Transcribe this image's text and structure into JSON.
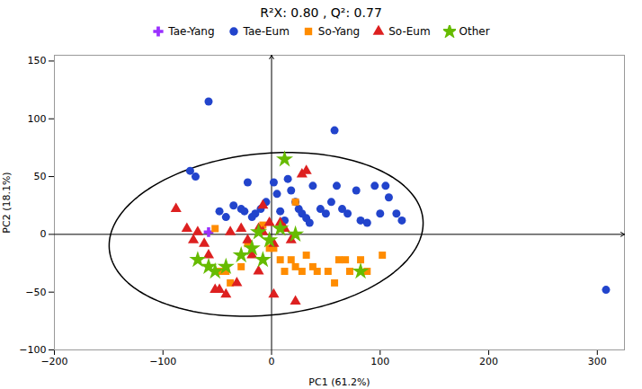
{
  "chart_data": {
    "type": "scatter",
    "title": "R²X: 0.80 , Q²: 0.77",
    "xlabel": "PC1 (61.2%)",
    "ylabel": "PC2 (18.1%)",
    "xlim": [
      -200,
      325
    ],
    "ylim": [
      -100,
      155
    ],
    "xticks": [
      -200,
      -100,
      0,
      100,
      200,
      300
    ],
    "yticks": [
      -100,
      -50,
      0,
      50,
      100,
      150
    ],
    "grid": false,
    "legend": "top",
    "ellipse": {
      "cx": -5,
      "cy": 0,
      "rx": 145,
      "ry": 70,
      "angle": 5
    },
    "series": [
      {
        "name": "Tae-Yang",
        "color": "#9B30FF",
        "marker": "plus",
        "values": [
          [
            -58,
            2
          ]
        ]
      },
      {
        "name": "Tae-Eum",
        "color": "#2244CC",
        "marker": "circle",
        "values": [
          [
            -75,
            55
          ],
          [
            -70,
            50
          ],
          [
            -48,
            20
          ],
          [
            -42,
            15
          ],
          [
            -35,
            25
          ],
          [
            -28,
            22
          ],
          [
            -25,
            20
          ],
          [
            -22,
            45
          ],
          [
            -18,
            15
          ],
          [
            -15,
            18
          ],
          [
            -10,
            22
          ],
          [
            -5,
            28
          ],
          [
            2,
            45
          ],
          [
            5,
            35
          ],
          [
            8,
            20
          ],
          [
            12,
            12
          ],
          [
            15,
            48
          ],
          [
            18,
            38
          ],
          [
            22,
            28
          ],
          [
            25,
            22
          ],
          [
            28,
            18
          ],
          [
            32,
            14
          ],
          [
            35,
            10
          ],
          [
            38,
            42
          ],
          [
            45,
            22
          ],
          [
            50,
            18
          ],
          [
            55,
            28
          ],
          [
            60,
            42
          ],
          [
            65,
            22
          ],
          [
            70,
            18
          ],
          [
            78,
            38
          ],
          [
            82,
            12
          ],
          [
            88,
            10
          ],
          [
            95,
            42
          ],
          [
            100,
            18
          ],
          [
            105,
            42
          ],
          [
            108,
            32
          ],
          [
            115,
            18
          ],
          [
            120,
            12
          ],
          [
            -58,
            115
          ],
          [
            58,
            90
          ],
          [
            308,
            -48
          ]
        ]
      },
      {
        "name": "So-Yang",
        "color": "#FF8C00",
        "marker": "square",
        "values": [
          [
            -52,
            5
          ],
          [
            -48,
            -32
          ],
          [
            -42,
            -32
          ],
          [
            -38,
            -42
          ],
          [
            -28,
            -28
          ],
          [
            -22,
            -8
          ],
          [
            -8,
            8
          ],
          [
            -2,
            -12
          ],
          [
            2,
            -12
          ],
          [
            8,
            -22
          ],
          [
            12,
            -32
          ],
          [
            18,
            -22
          ],
          [
            22,
            -28
          ],
          [
            28,
            -32
          ],
          [
            32,
            -18
          ],
          [
            38,
            -28
          ],
          [
            42,
            -32
          ],
          [
            52,
            -32
          ],
          [
            58,
            -42
          ],
          [
            62,
            -22
          ],
          [
            68,
            -22
          ],
          [
            72,
            -32
          ],
          [
            82,
            -22
          ],
          [
            88,
            -32
          ],
          [
            102,
            -18
          ],
          [
            22,
            28
          ]
        ]
      },
      {
        "name": "So-Eum",
        "color": "#DD2020",
        "marker": "triangle",
        "values": [
          [
            -88,
            22
          ],
          [
            -78,
            5
          ],
          [
            -72,
            -5
          ],
          [
            -68,
            2
          ],
          [
            -62,
            -8
          ],
          [
            -58,
            -18
          ],
          [
            -52,
            -48
          ],
          [
            -48,
            -48
          ],
          [
            -42,
            -52
          ],
          [
            -38,
            2
          ],
          [
            -32,
            -42
          ],
          [
            -28,
            5
          ],
          [
            -22,
            -5
          ],
          [
            -18,
            -18
          ],
          [
            -12,
            5
          ],
          [
            -8,
            2
          ],
          [
            -2,
            10
          ],
          [
            2,
            -8
          ],
          [
            8,
            10
          ],
          [
            12,
            5
          ],
          [
            18,
            -5
          ],
          [
            22,
            -58
          ],
          [
            28,
            52
          ],
          [
            32,
            55
          ],
          [
            -12,
            -32
          ],
          [
            -8,
            25
          ],
          [
            2,
            -52
          ]
        ]
      },
      {
        "name": "Other",
        "color": "#66BB00",
        "marker": "star",
        "values": [
          [
            -68,
            -22
          ],
          [
            -58,
            -28
          ],
          [
            -52,
            -32
          ],
          [
            -42,
            -28
          ],
          [
            -28,
            -18
          ],
          [
            -18,
            -12
          ],
          [
            -8,
            -22
          ],
          [
            -2,
            -5
          ],
          [
            8,
            5
          ],
          [
            12,
            65
          ],
          [
            82,
            -32
          ],
          [
            22,
            0
          ],
          [
            -12,
            2
          ]
        ]
      }
    ]
  }
}
